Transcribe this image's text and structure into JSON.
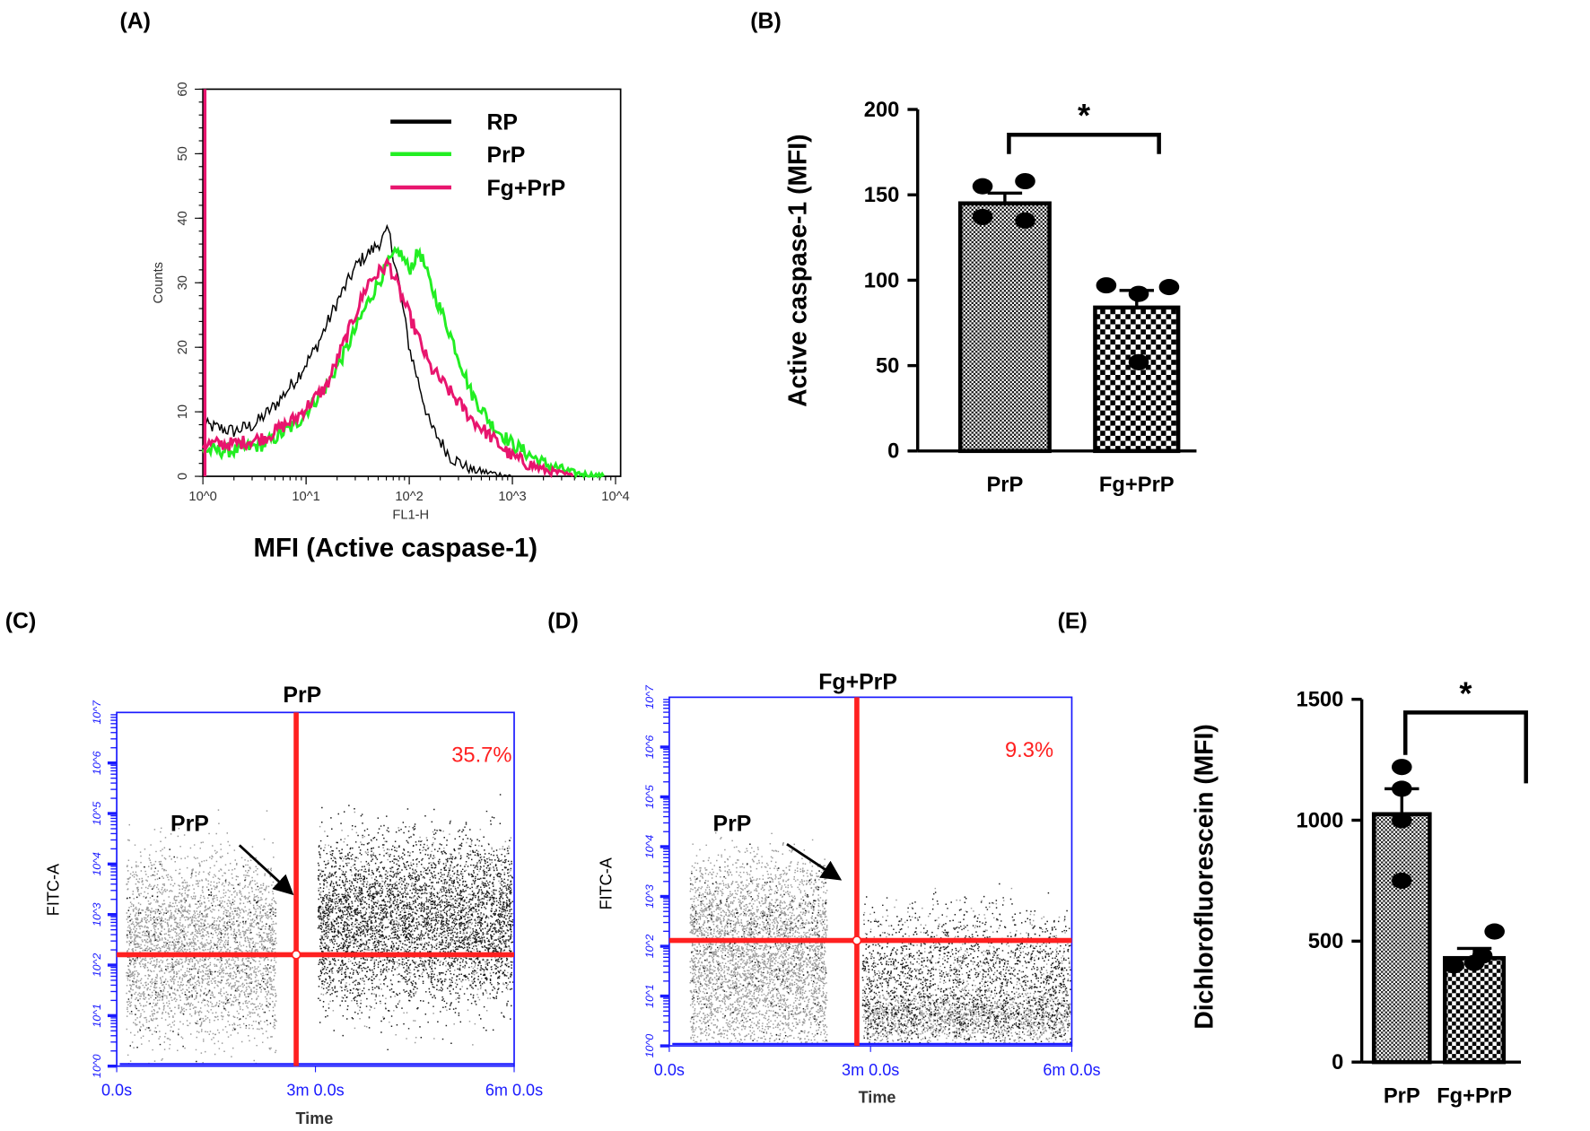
{
  "chart_data": [
    {
      "panel": "(A)",
      "type": "line",
      "xlabel": "FL1-H",
      "ylabel": "Counts",
      "title_below": "MFI (Active caspase-1)",
      "x_scale": "log",
      "xlim_log10": [
        0,
        4
      ],
      "ylim": [
        0,
        60
      ],
      "x_tick_labels": [
        "10^0",
        "10^1",
        "10^2",
        "10^3",
        "10^4"
      ],
      "y_tick_labels": [
        "0",
        "10",
        "20",
        "30",
        "40",
        "50",
        "60"
      ],
      "legend_position": "top-right",
      "series": [
        {
          "name": "RP",
          "color": "#000000",
          "x_log10": [
            0,
            0.3,
            0.5,
            0.7,
            0.9,
            1.1,
            1.3,
            1.5,
            1.7,
            1.8,
            1.9,
            2.0,
            2.1,
            2.2,
            2.4,
            2.6,
            2.8,
            3.0
          ],
          "y": [
            8,
            7,
            8,
            11,
            15,
            20,
            27,
            33,
            36,
            38,
            30,
            20,
            14,
            8,
            3,
            1,
            0.5,
            0
          ]
        },
        {
          "name": "PrP",
          "color": "#22ee22",
          "x_log10": [
            0,
            0.3,
            0.6,
            0.9,
            1.2,
            1.4,
            1.6,
            1.8,
            1.9,
            2.0,
            2.1,
            2.2,
            2.4,
            2.6,
            2.8,
            3.0,
            3.3,
            3.6,
            3.9
          ],
          "y": [
            4,
            4,
            5,
            8,
            14,
            20,
            27,
            33,
            35,
            32,
            35,
            30,
            22,
            13,
            8,
            5,
            2,
            0.5,
            0
          ]
        },
        {
          "name": "Fg+PrP",
          "color": "#e8156e",
          "x_log10": [
            0,
            0.3,
            0.6,
            0.9,
            1.2,
            1.4,
            1.6,
            1.8,
            1.9,
            2.0,
            2.2,
            2.4,
            2.6,
            2.8,
            3.0,
            3.3,
            3.6
          ],
          "y": [
            5,
            5,
            6,
            9,
            14,
            22,
            30,
            33,
            29,
            25,
            17,
            13,
            9,
            6,
            3,
            1,
            0
          ]
        }
      ]
    },
    {
      "panel": "(B)",
      "type": "bar",
      "ylabel": "Active caspase-1 (MFI)",
      "ylim": [
        0,
        200
      ],
      "y_tick_labels": [
        "0",
        "50",
        "100",
        "150",
        "200"
      ],
      "categories": [
        "PrP",
        "Fg+PrP"
      ],
      "values": [
        145,
        84
      ],
      "sem": [
        6,
        10
      ],
      "points": [
        [
          155,
          158,
          137,
          135
        ],
        [
          97,
          92,
          96,
          52
        ]
      ],
      "significance": "*"
    },
    {
      "panel": "(C)",
      "type": "scatter",
      "title": "PrP",
      "xlabel": "Time",
      "ylabel": "FITC-A",
      "x_tick_labels": [
        "0.0s",
        "3m 0.0s",
        "6m 0.0s"
      ],
      "y_tick_labels": [
        "10^0",
        "10^1",
        "10^2",
        "10^3",
        "10^4",
        "10^5",
        "10^6",
        "10^7"
      ],
      "quadrant_percent": "35.7%",
      "annotation": "PrP"
    },
    {
      "panel": "(D)",
      "type": "scatter",
      "title": "Fg+PrP",
      "xlabel": "Time",
      "ylabel": "FITC-A",
      "x_tick_labels": [
        "0.0s",
        "3m 0.0s",
        "6m 0.0s"
      ],
      "y_tick_labels": [
        "10^0",
        "10^1",
        "10^2",
        "10^3",
        "10^4",
        "10^5",
        "10^6",
        "10^7"
      ],
      "quadrant_percent": "9.3%",
      "annotation": "PrP"
    },
    {
      "panel": "(E)",
      "type": "bar",
      "ylabel": "Dichlorofluorescein (MFI)",
      "ylim": [
        0,
        1500
      ],
      "y_tick_labels": [
        "0",
        "500",
        "1000",
        "1500"
      ],
      "categories": [
        "PrP",
        "Fg+PrP"
      ],
      "values": [
        1025,
        430
      ],
      "sem": [
        105,
        40
      ],
      "points": [
        [
          1220,
          1130,
          1000,
          750
        ],
        [
          540,
          440,
          400,
          410
        ]
      ],
      "significance": "*"
    }
  ],
  "colors": {
    "gate": "#ff2020",
    "flow_axis": "#1a1aff"
  }
}
